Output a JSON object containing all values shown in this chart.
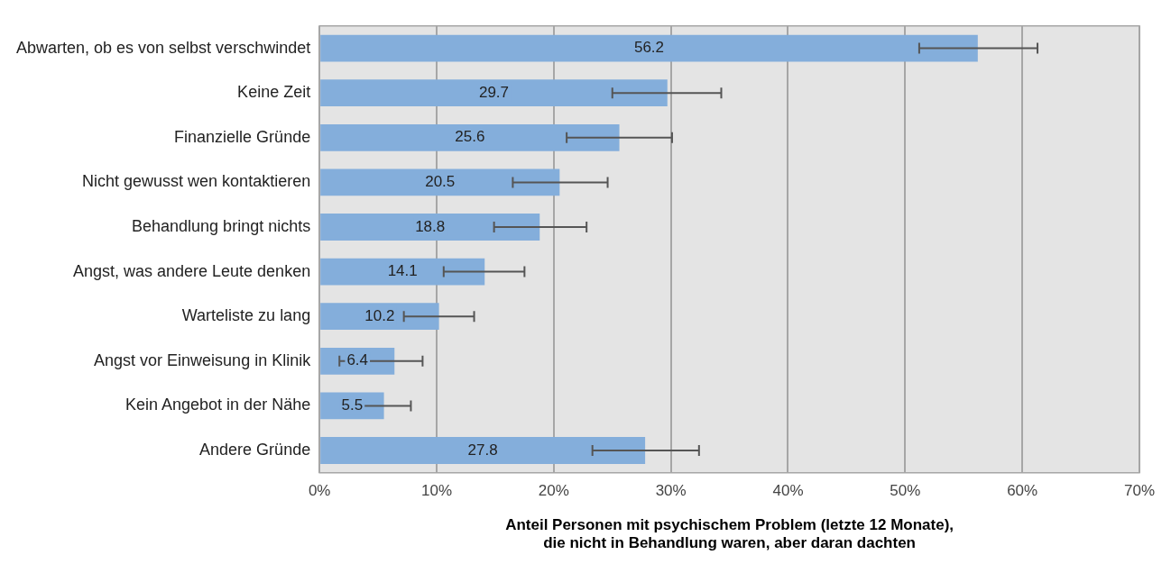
{
  "chart_data": {
    "type": "bar",
    "orientation": "horizontal",
    "categories": [
      "Abwarten, ob es von selbst verschwindet",
      "Keine Zeit",
      "Finanzielle Gründe",
      "Nicht gewusst wen kontaktieren",
      "Behandlung bringt nichts",
      "Angst, was andere Leute denken",
      "Warteliste zu lang",
      "Angst vor Einweisung in Klinik",
      "Kein Angebot in der Nähe",
      "Andere Gründe"
    ],
    "values": [
      56.2,
      29.7,
      25.6,
      20.5,
      18.8,
      14.1,
      10.2,
      6.4,
      5.5,
      27.8
    ],
    "errors": [
      [
        51.2,
        61.3
      ],
      [
        25.0,
        34.3
      ],
      [
        21.1,
        30.1
      ],
      [
        16.5,
        24.6
      ],
      [
        14.9,
        22.8
      ],
      [
        10.6,
        17.5
      ],
      [
        7.2,
        13.2
      ],
      [
        1.7,
        8.8
      ],
      [
        3.1,
        7.8
      ],
      [
        23.3,
        32.4
      ]
    ],
    "color": "#84aedb",
    "data_labels": true,
    "xlim": [
      0,
      70
    ],
    "xticks": [
      {
        "value": 0,
        "label": "0%"
      },
      {
        "value": 10,
        "label": "10%"
      },
      {
        "value": 20,
        "label": "20%"
      },
      {
        "value": 30,
        "label": "30%"
      },
      {
        "value": 40,
        "label": "40%"
      },
      {
        "value": 50,
        "label": "50%"
      },
      {
        "value": 60,
        "label": "60%"
      },
      {
        "value": 70,
        "label": "70%"
      }
    ],
    "xlabel": "Anteil Personen mit psychischem Problem (letzte 12 Monate),\ndie nicht in Behandlung waren, aber daran dachten",
    "grid": "x",
    "legend": false
  }
}
